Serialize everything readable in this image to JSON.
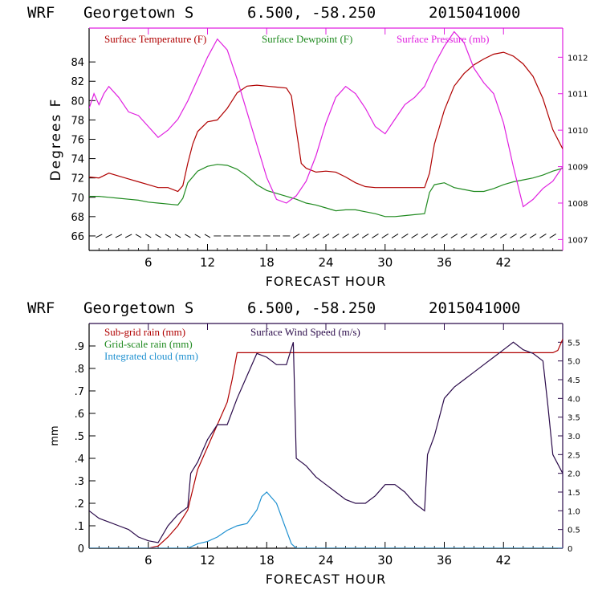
{
  "chart_data": [
    {
      "type": "line",
      "header": {
        "model": "WRF",
        "station": "Georgetown S",
        "coords": "6.500, -58.250",
        "init": "2015041000"
      },
      "xlabel": "FORECAST HOUR",
      "ylabel": "Degrees F",
      "xlim": [
        0,
        48
      ],
      "x_ticks": [
        "6",
        "12",
        "18",
        "24",
        "30",
        "36",
        "42"
      ],
      "y_left_lim": [
        64.5,
        87.5
      ],
      "y_left_ticks": [
        "66",
        "68",
        "70",
        "72",
        "74",
        "76",
        "78",
        "80",
        "82",
        "84"
      ],
      "y_right_lim": [
        1006.7,
        1012.8
      ],
      "y_right_ticks": [
        "1007",
        "1008",
        "1009",
        "1010",
        "1011",
        "1012"
      ],
      "legend": [
        {
          "label": "Surface Temperature (F)",
          "color": "#b00000"
        },
        {
          "label": "Surface Dewpoint (F)",
          "color": "#1f8a1f"
        },
        {
          "label": "Surface Pressure (mb)",
          "color": "#e020e0"
        }
      ],
      "series": [
        {
          "name": "Surface Temperature (F)",
          "axis": "left",
          "color": "#b00000",
          "x": [
            0,
            1,
            2,
            3,
            4,
            5,
            6,
            7,
            8,
            9,
            9.5,
            10,
            10.5,
            11,
            12,
            13,
            14,
            15,
            16,
            17,
            18,
            19,
            20,
            20.5,
            21,
            21.5,
            22,
            23,
            24,
            25,
            26,
            27,
            28,
            29,
            30,
            31,
            32,
            33,
            34,
            34.5,
            35,
            36,
            37,
            38,
            39,
            40,
            41,
            42,
            43,
            44,
            45,
            46,
            47,
            48
          ],
          "y": [
            72.1,
            72.0,
            72.5,
            72.2,
            71.9,
            71.6,
            71.3,
            71.0,
            71.0,
            70.6,
            71.2,
            73.5,
            75.5,
            76.8,
            77.8,
            78.0,
            79.2,
            80.8,
            81.5,
            81.6,
            81.5,
            81.4,
            81.3,
            80.5,
            77.0,
            73.5,
            73.0,
            72.6,
            72.7,
            72.6,
            72.1,
            71.5,
            71.1,
            71.0,
            71.0,
            71.0,
            71.0,
            71.0,
            71.0,
            72.5,
            75.5,
            79.0,
            81.5,
            82.8,
            83.7,
            84.3,
            84.8,
            85.0,
            84.6,
            83.8,
            82.5,
            80.2,
            77.0,
            75.0
          ]
        },
        {
          "name": "Surface Dewpoint (F)",
          "axis": "left",
          "color": "#1f8a1f",
          "x": [
            0,
            1,
            2,
            3,
            4,
            5,
            6,
            7,
            8,
            9,
            9.5,
            10,
            11,
            12,
            13,
            14,
            15,
            16,
            17,
            18,
            19,
            20,
            21,
            22,
            23,
            24,
            25,
            26,
            27,
            28,
            29,
            30,
            31,
            32,
            33,
            34,
            34.5,
            35,
            36,
            37,
            38,
            39,
            40,
            41,
            42,
            43,
            44,
            45,
            46,
            47,
            48
          ],
          "y": [
            70.1,
            70.1,
            70.0,
            69.9,
            69.8,
            69.7,
            69.5,
            69.4,
            69.3,
            69.2,
            69.9,
            71.5,
            72.7,
            73.2,
            73.4,
            73.3,
            72.9,
            72.2,
            71.3,
            70.7,
            70.4,
            70.1,
            69.8,
            69.4,
            69.2,
            68.9,
            68.6,
            68.7,
            68.7,
            68.5,
            68.3,
            68.0,
            68.0,
            68.1,
            68.2,
            68.3,
            70.5,
            71.3,
            71.5,
            71.0,
            70.8,
            70.6,
            70.6,
            70.9,
            71.3,
            71.6,
            71.8,
            72.0,
            72.3,
            72.7,
            73.0
          ]
        },
        {
          "name": "Surface Pressure (mb)",
          "axis": "right",
          "color": "#e020e0",
          "x": [
            0,
            0.5,
            1,
            1.5,
            2,
            3,
            4,
            5,
            6,
            7,
            8,
            9,
            10,
            11,
            12,
            13,
            14,
            15,
            16,
            17,
            18,
            19,
            20,
            21,
            22,
            23,
            24,
            25,
            26,
            27,
            28,
            29,
            30,
            31,
            32,
            33,
            34,
            35,
            36,
            37,
            38,
            39,
            40,
            41,
            42,
            43,
            44,
            45,
            46,
            47,
            48
          ],
          "y": [
            1010.6,
            1011.0,
            1010.7,
            1011.0,
            1011.2,
            1010.9,
            1010.5,
            1010.4,
            1010.1,
            1009.8,
            1010.0,
            1010.3,
            1010.8,
            1011.4,
            1012.0,
            1012.5,
            1012.2,
            1011.4,
            1010.5,
            1009.6,
            1008.7,
            1008.1,
            1008.0,
            1008.2,
            1008.6,
            1009.3,
            1010.2,
            1010.9,
            1011.2,
            1011.0,
            1010.6,
            1010.1,
            1009.9,
            1010.3,
            1010.7,
            1010.9,
            1011.2,
            1011.8,
            1012.3,
            1012.7,
            1012.4,
            1011.7,
            1011.3,
            1011.0,
            1010.2,
            1009.0,
            1007.9,
            1008.1,
            1008.4,
            1008.6,
            1009.0
          ]
        }
      ],
      "wind_barbs": "row of wind barbs along the bottom of the panel"
    },
    {
      "type": "line",
      "header": {
        "model": "WRF",
        "station": "Georgetown S",
        "coords": "6.500, -58.250",
        "init": "2015041000"
      },
      "xlabel": "FORECAST HOUR",
      "ylabel": "mm",
      "xlim": [
        0,
        48
      ],
      "x_ticks": [
        "6",
        "12",
        "18",
        "24",
        "30",
        "36",
        "42"
      ],
      "y_left_lim": [
        0,
        1.0
      ],
      "y_left_ticks": [
        "0",
        ".1",
        ".2",
        ".3",
        ".4",
        ".5",
        ".6",
        ".7",
        ".8",
        ".9"
      ],
      "y_right_lim": [
        0,
        6.0
      ],
      "y_right_ticks": [
        "0",
        "0.5",
        "1.0",
        "1.5",
        "2.0",
        "2.5",
        "3.0",
        "3.5",
        "4.0",
        "4.5",
        "5.0",
        "5.5"
      ],
      "legend": [
        {
          "label": "Sub-grid rain (mm)",
          "color": "#b00000"
        },
        {
          "label": "Surface Wind Speed (m/s)",
          "color": "#2a0a4a"
        },
        {
          "label": "Grid-scale rain (mm)",
          "color": "#1f8a1f"
        },
        {
          "label": "Integrated cloud (mm)",
          "color": "#1e90d0"
        }
      ],
      "series": [
        {
          "name": "Sub-grid rain (mm)",
          "axis": "left",
          "color": "#b00000",
          "x": [
            0,
            6,
            7,
            8,
            9,
            10,
            11,
            12,
            13,
            14,
            14.5,
            15,
            20,
            30,
            40,
            46,
            47,
            47.5,
            48
          ],
          "y": [
            0,
            0,
            0.01,
            0.05,
            0.1,
            0.17,
            0.35,
            0.45,
            0.55,
            0.65,
            0.75,
            0.87,
            0.87,
            0.87,
            0.87,
            0.87,
            0.87,
            0.88,
            0.93
          ]
        },
        {
          "name": "Surface Wind Speed (m/s)",
          "axis": "right",
          "color": "#2a0a4a",
          "x": [
            0,
            1,
            2,
            3,
            4,
            5,
            6,
            7,
            8,
            9,
            10,
            10.3,
            11,
            12,
            13,
            14,
            15,
            16,
            17,
            18,
            19,
            20,
            20.7,
            21,
            22,
            23,
            24,
            25,
            26,
            27,
            28,
            29,
            30,
            31,
            32,
            33,
            34,
            34.3,
            35,
            36,
            37,
            38,
            39,
            40,
            41,
            42,
            43,
            44,
            45,
            46,
            46.5,
            47,
            48
          ],
          "y": [
            1.0,
            0.8,
            0.7,
            0.6,
            0.5,
            0.3,
            0.2,
            0.15,
            0.6,
            0.9,
            1.1,
            2.0,
            2.3,
            2.9,
            3.3,
            3.3,
            4.0,
            4.6,
            5.2,
            5.1,
            4.9,
            4.9,
            5.5,
            2.4,
            2.2,
            1.9,
            1.7,
            1.5,
            1.3,
            1.2,
            1.2,
            1.4,
            1.7,
            1.7,
            1.5,
            1.2,
            1.0,
            2.5,
            3.0,
            4.0,
            4.3,
            4.5,
            4.7,
            4.9,
            5.1,
            5.3,
            5.5,
            5.3,
            5.2,
            5.0,
            3.8,
            2.5,
            2.0
          ]
        },
        {
          "name": "Integrated cloud (mm)",
          "axis": "left",
          "color": "#1e90d0",
          "x": [
            0,
            6,
            7,
            8,
            10,
            11,
            12,
            13,
            14,
            15,
            16,
            17,
            17.5,
            18,
            19,
            20,
            20.5,
            21,
            48
          ],
          "y": [
            0,
            0,
            0,
            0,
            0,
            0.02,
            0.03,
            0.05,
            0.08,
            0.1,
            0.11,
            0.17,
            0.23,
            0.25,
            0.2,
            0.08,
            0.02,
            0,
            0
          ]
        }
      ]
    }
  ]
}
